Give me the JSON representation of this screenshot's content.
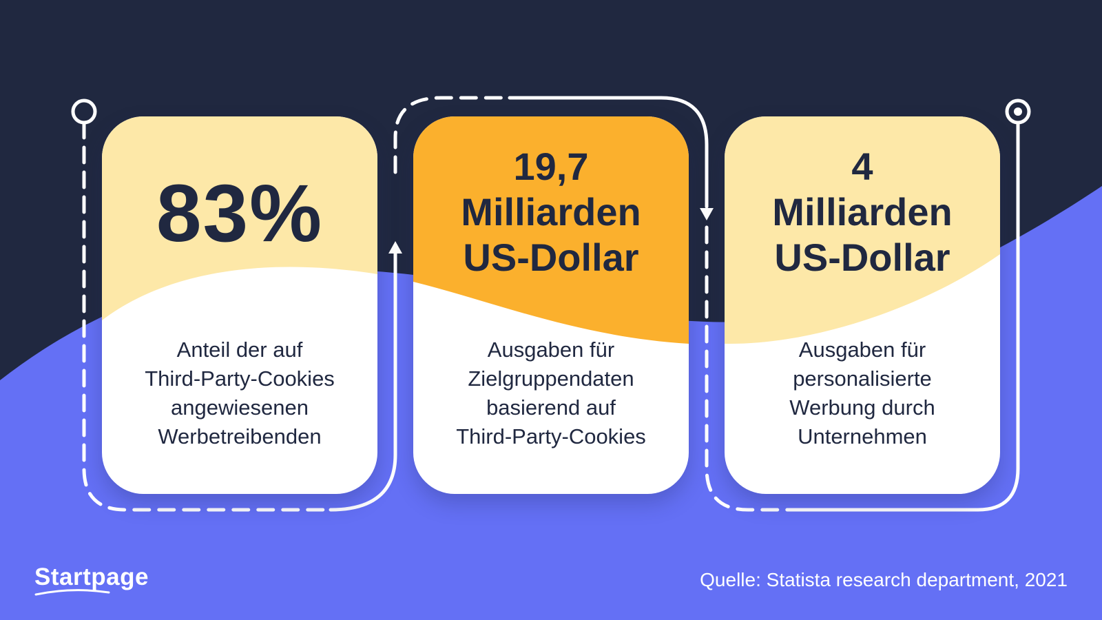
{
  "colors": {
    "navy": "#202840",
    "periwinkle": "#6470f5",
    "pale_yellow": "#fde8a8",
    "orange": "#fbb02d",
    "white": "#ffffff"
  },
  "cards": [
    {
      "value": "83%",
      "description_lines": [
        "Anteil der auf",
        "Third-Party-Cookies",
        "angewiesenen",
        "Werbetreibenden"
      ]
    },
    {
      "value_lines": [
        "19,7",
        "Milliarden",
        "US-Dollar"
      ],
      "description_lines": [
        "Ausgaben für",
        "Zielgruppendaten",
        "basierend auf",
        "Third-Party-Cookies"
      ]
    },
    {
      "value_lines": [
        "4",
        "Milliarden",
        "US-Dollar"
      ],
      "description_lines": [
        "Ausgaben für",
        "personalisierte",
        "Werbung durch",
        "Unternehmen"
      ]
    }
  ],
  "footer": {
    "logo": "Startpage",
    "source": "Quelle: Statista research department, 2021"
  },
  "icons": [
    "start-circle-icon",
    "end-circle-icon",
    "arrow-up-icon",
    "arrow-down-icon"
  ]
}
